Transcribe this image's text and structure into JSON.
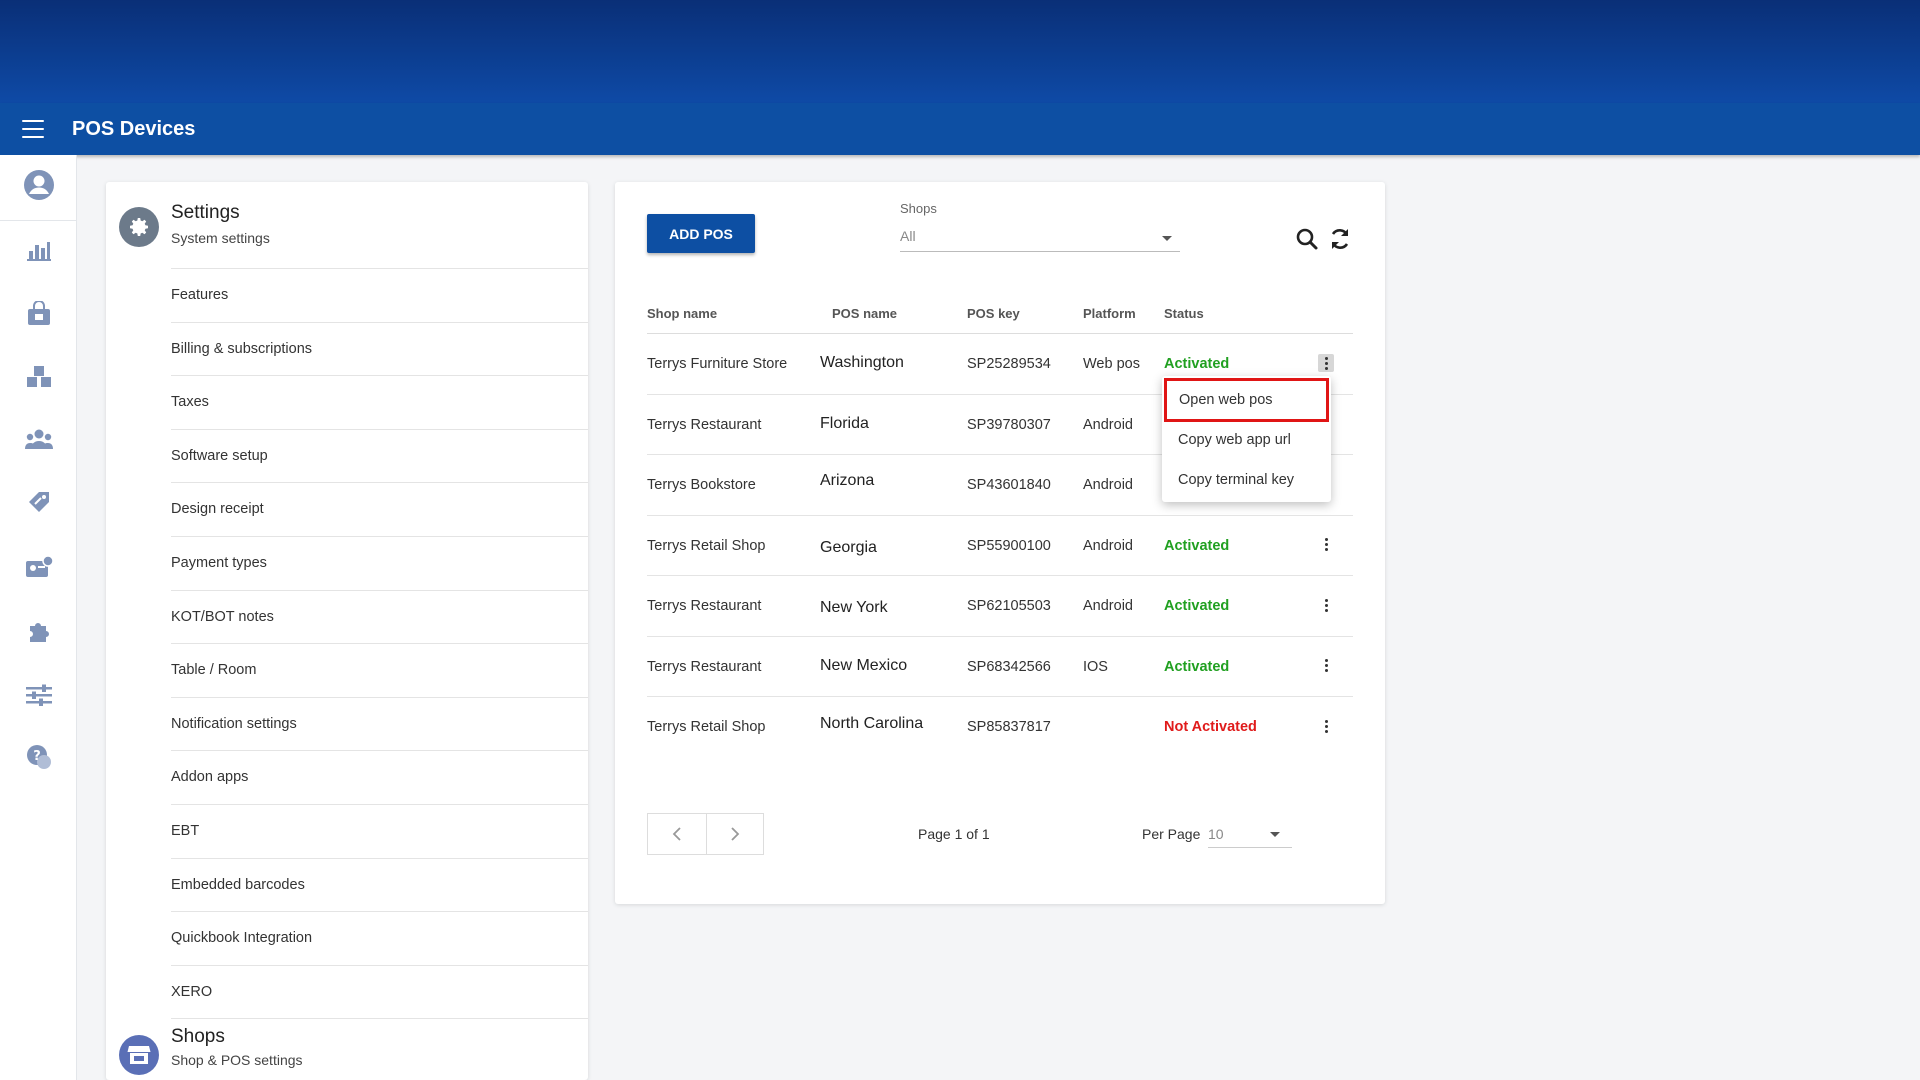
{
  "app": {
    "title": "POS Devices"
  },
  "rail": {
    "items": [
      {
        "icon": "user-icon",
        "label": ""
      },
      {
        "icon": "chart-icon",
        "label": ""
      },
      {
        "icon": "store-bag-icon",
        "label": ""
      },
      {
        "icon": "inventory-icon",
        "label": ""
      },
      {
        "icon": "customers-icon",
        "label": ""
      },
      {
        "icon": "promotions-icon",
        "label": ""
      },
      {
        "icon": "employees-icon",
        "label": ""
      },
      {
        "icon": "addons-icon",
        "label": ""
      },
      {
        "icon": "settings-sliders-icon",
        "label": ""
      },
      {
        "icon": "help-icon",
        "label": ""
      }
    ],
    "icon_color": "#7f93b8"
  },
  "settings": {
    "title": "Settings",
    "subtitle": "System settings",
    "icon": "gear-icon",
    "icon_bg": "#6c7a8a",
    "items": [
      "Features",
      "Billing & subscriptions",
      "Taxes",
      "Software setup",
      "Design receipt",
      "Payment types",
      "KOT/BOT notes",
      "Table / Room",
      "Notification settings",
      "Addon apps",
      "EBT",
      "Embedded barcodes",
      "Quickbook Integration",
      "XERO"
    ]
  },
  "shops_section": {
    "title": "Shops",
    "subtitle": "Shop & POS settings",
    "icon": "storefront-icon",
    "icon_bg": "#5a6fb6"
  },
  "toolbar": {
    "add_label": "ADD POS",
    "shops_label": "Shops",
    "shops_value": "All",
    "search_icon": "search-icon",
    "refresh_icon": "refresh-icon"
  },
  "table": {
    "headers": {
      "shop": "Shop name",
      "pos": "POS name",
      "key": "POS key",
      "platform": "Platform",
      "status": "Status"
    },
    "rows": [
      {
        "shop": "Terrys Furniture Store",
        "pos": "Washington",
        "key": "SP25289534",
        "platform": "Web pos",
        "status": "Activated"
      },
      {
        "shop": "Terrys Restaurant",
        "pos": "Florida",
        "key": "SP39780307",
        "platform": "Android",
        "status": ""
      },
      {
        "shop": "Terrys Bookstore",
        "pos": "Arizona",
        "key": "SP43601840",
        "platform": "Android",
        "status": ""
      },
      {
        "shop": "Terrys Retail Shop",
        "pos": "Georgia",
        "key": "SP55900100",
        "platform": "Android",
        "status": "Activated"
      },
      {
        "shop": "Terrys Restaurant",
        "pos": "New York",
        "key": "SP62105503",
        "platform": "Android",
        "status": "Activated"
      },
      {
        "shop": "Terrys Restaurant",
        "pos": "New Mexico",
        "key": "SP68342566",
        "platform": "IOS",
        "status": "Activated"
      },
      {
        "shop": "Terrys Retail Shop",
        "pos": "North Carolina",
        "key": "SP85837817",
        "platform": "",
        "status": "Not Activated"
      }
    ],
    "status_colors": {
      "Activated": "#21a021",
      "Not Activated": "#e01b1b"
    }
  },
  "row_menu": {
    "items": [
      "Open web pos",
      "Copy web app url",
      "Copy terminal key"
    ],
    "highlighted_index": 0,
    "highlight_color": "#e01515"
  },
  "pagination": {
    "page_info": "Page 1 of 1",
    "per_page_label": "Per Page",
    "per_page_value": "10",
    "prev_icon": "chevron-left-icon",
    "next_icon": "chevron-right-icon"
  },
  "colors": {
    "primary": "#0d4fa3",
    "banner_top": "#0a2f77"
  }
}
